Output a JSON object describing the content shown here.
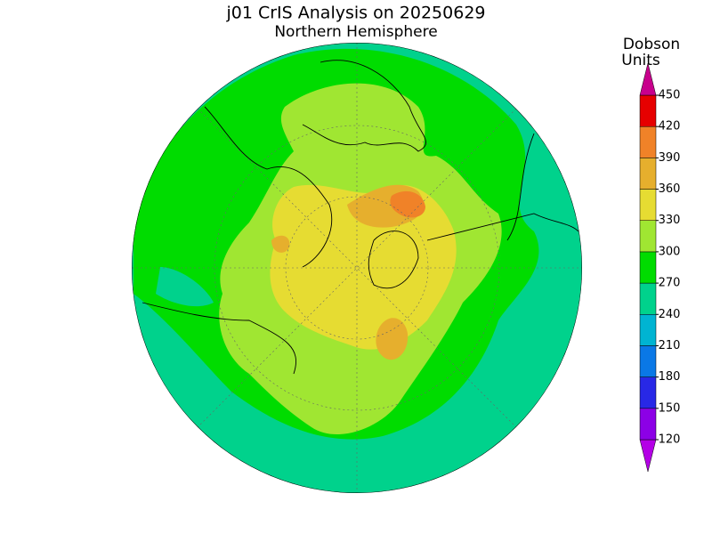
{
  "title": "j01 CrIS Analysis on 20250629",
  "subtitle": "Northern Hemisphere",
  "colorbar": {
    "unit_label": [
      "Dobson",
      "Units"
    ],
    "ticks": [
      120,
      150,
      180,
      210,
      240,
      270,
      300,
      330,
      360,
      390,
      420,
      450
    ],
    "colors": [
      "#b400e6",
      "#8c00e6",
      "#2828e6",
      "#0a78e6",
      "#00b4d2",
      "#00d28c",
      "#00dc00",
      "#a0e632",
      "#e6dc32",
      "#e6af2d",
      "#f08228",
      "#e60000",
      "#c8008c"
    ]
  }
}
